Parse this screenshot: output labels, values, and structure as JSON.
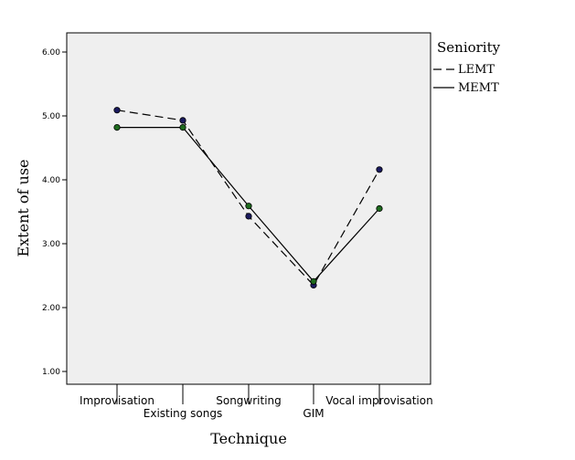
{
  "chart_data": {
    "type": "line",
    "xlabel": "Technique",
    "ylabel": "Extent of use",
    "categories": [
      "Improvisation",
      "Existing songs",
      "Songwriting",
      "GIM",
      "Vocal improvisation"
    ],
    "ylim": [
      0.8,
      6.3
    ],
    "yticks": [
      "1.00",
      "2.00",
      "3.00",
      "4.00",
      "5.00",
      "6.00"
    ],
    "legend": {
      "title": "Seniority",
      "position": "right"
    },
    "grid": false,
    "background": "#efefef",
    "series": [
      {
        "name": "LEMT",
        "style": "dashed",
        "marker_color": "#1a1a5e",
        "values": [
          5.09,
          4.93,
          3.43,
          2.35,
          4.16
        ]
      },
      {
        "name": "MEMT",
        "style": "solid",
        "marker_color": "#1e6b1e",
        "values": [
          4.82,
          4.82,
          3.59,
          2.41,
          3.55
        ]
      }
    ]
  }
}
